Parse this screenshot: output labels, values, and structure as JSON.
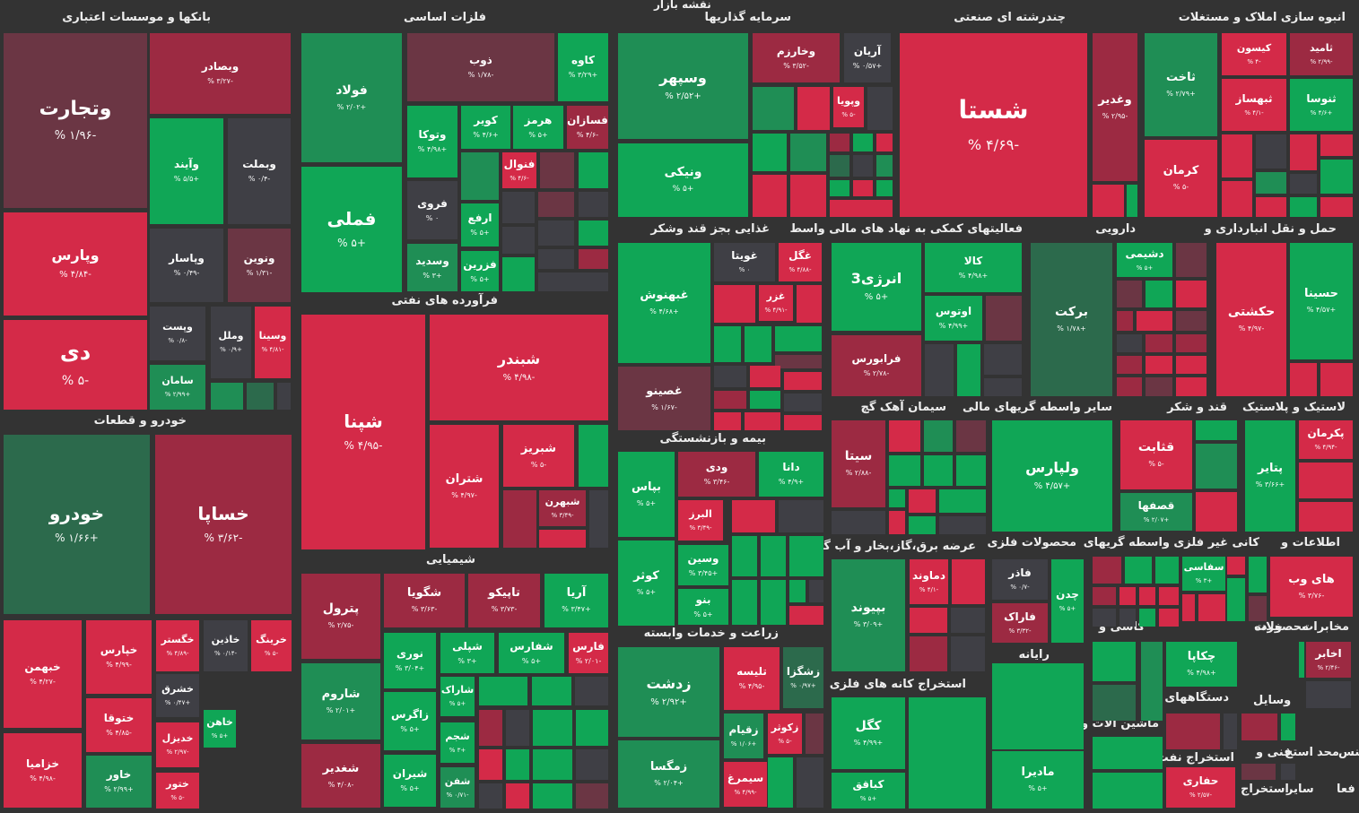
{
  "page": {
    "title": "نقشه بازار"
  },
  "colors": {
    "background": "#333333",
    "red": "#d42a48",
    "mred": "#9c2a42",
    "dred": "#6b3644",
    "green": "#10a656",
    "mgreen": "#1f8e55",
    "dgreen": "#2c6a4c",
    "grey": "#3f3f45"
  },
  "chart_data": {
    "type": "treemap",
    "title": "نقشه بازار",
    "sectors": [
      {
        "name": "بانکها و موسسات اعتباری",
        "stocks": [
          {
            "symbol": "وتجارت",
            "change": "-۱/۹۶ %",
            "value": -1.96
          },
          {
            "symbol": "وپارس",
            "change": "-۴/۸۴ %",
            "value": -4.84
          },
          {
            "symbol": "دی",
            "change": "-۵ %",
            "value": -5
          },
          {
            "symbol": "وبصادر",
            "change": "-۳/۲۷ %",
            "value": -3.27
          },
          {
            "symbol": "وآیند",
            "change": "+۵/۵ %",
            "value": 5.5
          },
          {
            "symbol": "وبملت",
            "change": "-۰/۴ %",
            "value": -0.4
          },
          {
            "symbol": "وپاسار",
            "change": "-۰/۴۹ %",
            "value": -0.49
          },
          {
            "symbol": "ونوین",
            "change": "-۱/۳۱ %",
            "value": -1.31
          },
          {
            "symbol": "وپست",
            "change": "-۰/۸ %",
            "value": -0.8
          },
          {
            "symbol": "وملل",
            "change": "+۰/۹ %",
            "value": 0.9
          },
          {
            "symbol": "وسینا",
            "change": "-۴/۸۱ %",
            "value": -4.81
          },
          {
            "symbol": "سامان",
            "change": "+۲/۹۹ %",
            "value": 2.99
          }
        ]
      },
      {
        "name": "فلزات اساسی",
        "stocks": [
          {
            "symbol": "فولاد",
            "change": "+۲/۰۲ %",
            "value": 2.02
          },
          {
            "symbol": "فملی",
            "change": "+۵ %",
            "value": 5
          },
          {
            "symbol": "ذوب",
            "change": "-۱/۷۸ %",
            "value": -1.78
          },
          {
            "symbol": "کاوه",
            "change": "+۳/۲۹ %",
            "value": 3.29
          },
          {
            "symbol": "وتوکا",
            "change": "+۴/۹۸ %",
            "value": 4.98
          },
          {
            "symbol": "کویر",
            "change": "+۴/۶ %",
            "value": 4.6
          },
          {
            "symbol": "هرمز",
            "change": "+۵ %",
            "value": 5
          },
          {
            "symbol": "فسازان",
            "change": "-۴/۶ %",
            "value": -4.6
          },
          {
            "symbol": "فنوال",
            "change": "-۴/۶ %",
            "value": -4.6
          },
          {
            "symbol": "فروی",
            "change": "۰ %",
            "value": 0
          },
          {
            "symbol": "ارفع",
            "change": "+۵ %",
            "value": 5
          },
          {
            "symbol": "وسدید",
            "change": "+۳ %",
            "value": 3
          },
          {
            "symbol": "فزرین",
            "change": "+۵ %",
            "value": 5
          }
        ]
      },
      {
        "name": "سرمایه گذاریها",
        "stocks": [
          {
            "symbol": "وسپهر",
            "change": "+۲/۵۲ %",
            "value": 2.52
          },
          {
            "symbol": "ونیکی",
            "change": "+۵ %",
            "value": 5
          },
          {
            "symbol": "وخارزم",
            "change": "-۳/۵۲ %",
            "value": -3.52
          },
          {
            "symbol": "آریان",
            "change": "+۰/۵۷ %",
            "value": 0.57
          },
          {
            "symbol": "وپویا",
            "change": "-۵ %",
            "value": -5
          }
        ]
      },
      {
        "name": "چندرشته ای صنعتی",
        "stocks": [
          {
            "symbol": "شستا",
            "change": "-۴/۶۹ %",
            "value": -4.69
          },
          {
            "symbol": "وغدیر",
            "change": "-۲/۹۵ %",
            "value": -2.95
          }
        ]
      },
      {
        "name": "انبوه سازی املاک و مستغلات",
        "stocks": [
          {
            "symbol": "ثاخت",
            "change": "+۲/۷۹ %",
            "value": 2.79
          },
          {
            "symbol": "کیسون",
            "change": "-۴ %",
            "value": -4
          },
          {
            "symbol": "ثامید",
            "change": "-۲/۹۹ %",
            "value": -2.99
          },
          {
            "symbol": "ثبهساز",
            "change": "-۴/۱ %",
            "value": -4.1
          },
          {
            "symbol": "ثنوسا",
            "change": "+۴/۶ %",
            "value": 4.6
          },
          {
            "symbol": "کرمان",
            "change": "-۵ %",
            "value": -5
          }
        ]
      },
      {
        "name": "خودرو و قطعات",
        "stocks": [
          {
            "symbol": "خودرو",
            "change": "+۱/۶۶ %",
            "value": 1.66
          },
          {
            "symbol": "خساپا",
            "change": "-۳/۶۲ %",
            "value": -3.62
          },
          {
            "symbol": "خپارس",
            "change": "-۴/۹۹ %",
            "value": -4.99
          },
          {
            "symbol": "خگستر",
            "change": "-۴/۸۹ %",
            "value": -4.89
          },
          {
            "symbol": "خاذین",
            "change": "-۰/۱۴ %",
            "value": -0.14
          },
          {
            "symbol": "خرینگ",
            "change": "-۵ %",
            "value": -5
          },
          {
            "symbol": "خبهمن",
            "change": "-۴/۲۷ %",
            "value": -4.27
          },
          {
            "symbol": "ختوقا",
            "change": "-۴/۸۵ %",
            "value": -4.85
          },
          {
            "symbol": "خشرق",
            "change": "+۰/۴۷ %",
            "value": 0.47
          },
          {
            "symbol": "خاهن",
            "change": "+۵ %",
            "value": 5
          },
          {
            "symbol": "خدیزل",
            "change": "-۲/۹۷ %",
            "value": -2.97
          },
          {
            "symbol": "خزامیا",
            "change": "-۴/۹۸ %",
            "value": -4.98
          },
          {
            "symbol": "خاور",
            "change": "+۲/۹۹ %",
            "value": 2.99
          },
          {
            "symbol": "ختور",
            "change": "-۵ %",
            "value": -5
          }
        ]
      },
      {
        "name": "فرآورده های نفتی",
        "stocks": [
          {
            "symbol": "شپنا",
            "change": "-۴/۹۵ %",
            "value": -4.95
          },
          {
            "symbol": "شبندر",
            "change": "-۴/۹۸ %",
            "value": -4.98
          },
          {
            "symbol": "شتران",
            "change": "-۴/۹۷ %",
            "value": -4.97
          },
          {
            "symbol": "شبریز",
            "change": "-۵ %",
            "value": -5
          },
          {
            "symbol": "شبهرن",
            "change": "-۳/۴۹ %",
            "value": -3.49
          }
        ]
      },
      {
        "name": "شیمیایی",
        "stocks": [
          {
            "symbol": "پترول",
            "change": "-۲/۷۵ %",
            "value": -2.75
          },
          {
            "symbol": "شگویا",
            "change": "-۳/۶۳ %",
            "value": -3.63
          },
          {
            "symbol": "تاپیکو",
            "change": "-۳/۷۳ %",
            "value": -3.73
          },
          {
            "symbol": "آریا",
            "change": "+۳/۴۷ %",
            "value": 3.47
          },
          {
            "symbol": "نوری",
            "change": "+۳/۰۴ %",
            "value": 3.04
          },
          {
            "symbol": "شپلی",
            "change": "+۳ %",
            "value": 3
          },
          {
            "symbol": "شفارس",
            "change": "+۵ %",
            "value": 5
          },
          {
            "symbol": "فارس",
            "change": "-۲/۰۱ %",
            "value": -2.01
          },
          {
            "symbol": "شاروم",
            "change": "+۲/۰۱ %",
            "value": 2.01
          },
          {
            "symbol": "شاراک",
            "change": "+۵ %",
            "value": 5
          },
          {
            "symbol": "زاگرس",
            "change": "+۵ %",
            "value": 5
          },
          {
            "symbol": "شجم",
            "change": "+۳ %",
            "value": 3
          },
          {
            "symbol": "شغدیر",
            "change": "-۴/۰۸ %",
            "value": -4.08
          },
          {
            "symbol": "شیران",
            "change": "+۵ %",
            "value": 5
          },
          {
            "symbol": "شفن",
            "change": "-۰/۷۱ %",
            "value": -0.71
          }
        ]
      },
      {
        "name": "غذایی بجز قند وشکر",
        "stocks": [
          {
            "symbol": "غبهنوش",
            "change": "+۴/۶۸ %",
            "value": 4.68
          },
          {
            "symbol": "غویتا",
            "change": "۰ %",
            "value": 0
          },
          {
            "symbol": "غگل",
            "change": "-۴/۸۸ %",
            "value": -4.88
          },
          {
            "symbol": "غزر",
            "change": "-۴/۹۱ %",
            "value": -4.91
          },
          {
            "symbol": "غصینو",
            "change": "-۱/۶۷ %",
            "value": -1.67
          }
        ]
      },
      {
        "name": "بیمه و بازنشستگی",
        "stocks": [
          {
            "symbol": "بپاس",
            "change": "+۵ %",
            "value": 5
          },
          {
            "symbol": "ودی",
            "change": "-۳/۴۶ %",
            "value": -3.46
          },
          {
            "symbol": "دانا",
            "change": "+۴/۹ %",
            "value": 4.9
          },
          {
            "symbol": "البرز",
            "change": "-۳/۴۹ %",
            "value": -3.49
          },
          {
            "symbol": "کوثر",
            "change": "+۵ %",
            "value": 5
          },
          {
            "symbol": "وسین",
            "change": "+۳/۴۵ %",
            "value": 3.45
          },
          {
            "symbol": "بنو",
            "change": "+۵ %",
            "value": 5
          }
        ]
      },
      {
        "name": "زراعت و خدمات وابسته",
        "stocks": [
          {
            "symbol": "زدشت",
            "change": "+۲/۹۲ %",
            "value": 2.92
          },
          {
            "symbol": "تلیسه",
            "change": "-۴/۹۵ %",
            "value": -4.95
          },
          {
            "symbol": "زشگزا",
            "change": "+۰/۹۷ %",
            "value": 0.97
          },
          {
            "symbol": "زقیام",
            "change": "+۱/۰۶ %",
            "value": 1.06
          },
          {
            "symbol": "زکوثر",
            "change": "-۵ %",
            "value": -5
          },
          {
            "symbol": "زمگسا",
            "change": "+۲/۰۴ %",
            "value": 2.04
          },
          {
            "symbol": "سیمرغ",
            "change": "-۴/۹۹ %",
            "value": -4.99
          }
        ]
      },
      {
        "name": "فعالیتهای کمکی به نهاد های مالی واسط",
        "stocks": [
          {
            "symbol": "انرژی3",
            "change": "+۵ %",
            "value": 5
          },
          {
            "symbol": "کالا",
            "change": "+۴/۹۸ %",
            "value": 4.98
          },
          {
            "symbol": "اوتوس",
            "change": "+۴/۹۹ %",
            "value": 4.99
          },
          {
            "symbol": "فرابورس",
            "change": "-۲/۷۸ %",
            "value": -2.78
          }
        ]
      },
      {
        "name": "دارویی",
        "stocks": [
          {
            "symbol": "برکت",
            "change": "+۱/۷۸ %",
            "value": 1.78
          },
          {
            "symbol": "دشیمی",
            "change": "+۵ %",
            "value": 5
          }
        ]
      },
      {
        "name": "حمل و نقل انبارداری و",
        "stocks": [
          {
            "symbol": "حکشتی",
            "change": "-۴/۹۷ %",
            "value": -4.97
          },
          {
            "symbol": "حسینا",
            "change": "+۴/۵۷ %",
            "value": 4.57
          }
        ]
      },
      {
        "name": "سیمان آهک گچ",
        "stocks": [
          {
            "symbol": "سیتا",
            "change": "-۲/۸۸ %",
            "value": -2.88
          }
        ]
      },
      {
        "name": "سایر واسطه گریهای مالی",
        "stocks": [
          {
            "symbol": "ولپارس",
            "change": "+۴/۵۷ %",
            "value": 4.57
          }
        ]
      },
      {
        "name": "قند و شکر",
        "stocks": [
          {
            "symbol": "قثابت",
            "change": "-۵ %",
            "value": -5
          },
          {
            "symbol": "قصفها",
            "change": "+۲/۰۷ %",
            "value": 2.07
          }
        ]
      },
      {
        "name": "لاستیک و پلاستیک",
        "stocks": [
          {
            "symbol": "پکرمان",
            "change": "-۴/۹۴ %",
            "value": -4.94
          },
          {
            "symbol": "پتایر",
            "change": "+۳/۶۶ %",
            "value": 3.66
          }
        ]
      },
      {
        "name": "عرضه برق،گاز،بخار و آب گرم",
        "stocks": [
          {
            "symbol": "دماوند",
            "change": "-۴/۱ %",
            "value": -4.1
          },
          {
            "symbol": "بپیوند",
            "change": "+۳/۰۹ %",
            "value": 3.09
          }
        ]
      },
      {
        "name": "محصولات فلزی",
        "stocks": [
          {
            "symbol": "فاذر",
            "change": "-۰/۷ %",
            "value": -0.7
          },
          {
            "symbol": "چدن",
            "change": "+۵ %",
            "value": 5
          },
          {
            "symbol": "فاراک",
            "change": "-۳/۳۲ %",
            "value": -3.32
          }
        ]
      },
      {
        "name": "واسطه گریهای",
        "stocks": []
      },
      {
        "name": "کانی غیر فلزی",
        "stocks": [
          {
            "symbol": "سفاسی",
            "change": "+۳ %",
            "value": 3
          }
        ]
      },
      {
        "name": "اطلاعات و",
        "stocks": [
          {
            "symbol": "های وب",
            "change": "-۳/۷۶ %",
            "value": -3.76
          }
        ]
      },
      {
        "name": "استخراج کانه های فلزی",
        "stocks": [
          {
            "symbol": "کگل",
            "change": "+۴/۹۹ %",
            "value": 4.99
          },
          {
            "symbol": "کباقق",
            "change": "+۵ %",
            "value": 5
          }
        ]
      },
      {
        "name": "رایانه",
        "stocks": []
      },
      {
        "name": "محصولات",
        "stocks": [
          {
            "symbol": "مادیرا",
            "change": "+۵ %",
            "value": 5
          }
        ]
      },
      {
        "name": "کاشی و",
        "stocks": []
      },
      {
        "name": "خرده",
        "stocks": []
      },
      {
        "name": "مخابرات",
        "stocks": [
          {
            "symbol": "اخابر",
            "change": "-۲/۴۶ %",
            "value": -2.46
          }
        ]
      },
      {
        "name": "دستگاههای",
        "stocks": [
          {
            "symbol": "چکاپا",
            "change": "+۴/۹۸ %",
            "value": 4.98
          }
        ]
      },
      {
        "name": "ماشین آلات و",
        "stocks": []
      },
      {
        "name": "استخراج نفت",
        "stocks": [
          {
            "symbol": "حفاری",
            "change": "-۲/۵۷ %",
            "value": -2.57
          }
        ]
      }
    ],
    "extra_labels": [
      "وسایل",
      "هتل و",
      "فنی و",
      "منس",
      "محد",
      "استخ",
      "سایر",
      "استخراج",
      "فعا",
      "محصولات"
    ]
  }
}
